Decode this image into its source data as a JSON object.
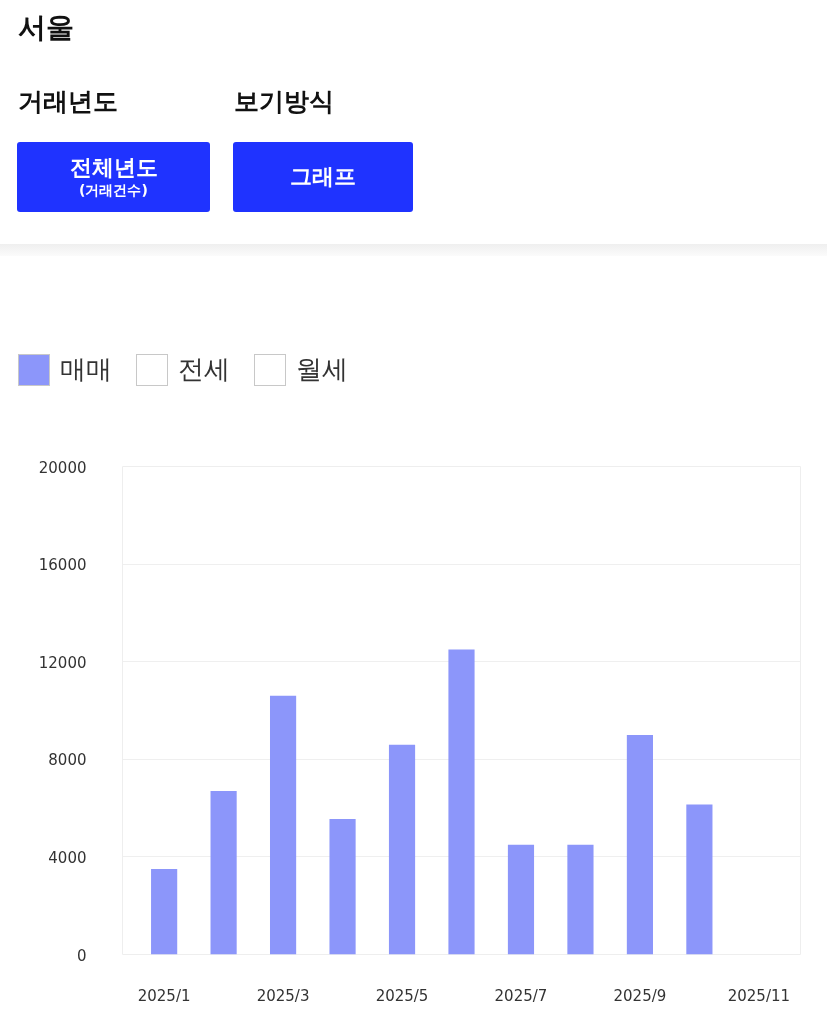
{
  "chart_data": {
    "type": "bar",
    "title": "서울",
    "annotations": [
      "거래년도",
      "전체년도",
      "(거래건수)",
      "보기방식",
      "그래프"
    ],
    "categories": [
      "2025/1",
      null,
      "2025/3",
      null,
      "2025/5",
      null,
      "2025/7",
      null,
      "2025/9",
      null,
      "2025/11"
    ],
    "series": [
      {
        "name": "매매",
        "color": "#8c96fa",
        "values": [
          3500,
          6700,
          10600,
          5550,
          8600,
          12500,
          4500,
          4500,
          9000,
          6150,
          null
        ]
      },
      {
        "name": "전세",
        "values": [
          null,
          null,
          null,
          null,
          null,
          null,
          null,
          null,
          null,
          null,
          null
        ]
      },
      {
        "name": "월세",
        "values": [
          null,
          null,
          null,
          null,
          null,
          null,
          null,
          null,
          null,
          null,
          null
        ]
      }
    ],
    "ylim": [
      0,
      20000
    ],
    "yticks": [
      0,
      4000,
      8000,
      12000,
      16000,
      20000
    ],
    "grid": "y",
    "legend": "top left"
  }
}
